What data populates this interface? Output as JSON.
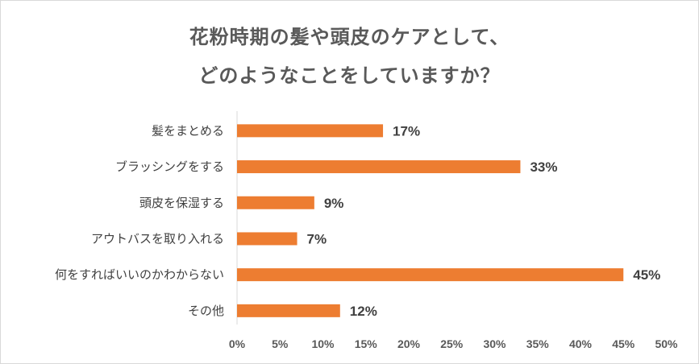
{
  "chart_data": {
    "type": "bar",
    "orientation": "horizontal",
    "title_lines": [
      "花粉時期の髪や頭皮のケアとして、",
      "どのようなことをしていますか？"
    ],
    "categories": [
      "髪をまとめる",
      "ブラッシングをする",
      "頭皮を保湿する",
      "アウトバスを取り入れる",
      "何をすればいいのかわからない",
      "その他"
    ],
    "values": [
      17,
      33,
      9,
      7,
      45,
      12
    ],
    "data_labels": [
      "17%",
      "33%",
      "9%",
      "7%",
      "45%",
      "12%"
    ],
    "xlim": [
      0,
      50
    ],
    "x_ticks": [
      0,
      5,
      10,
      15,
      20,
      25,
      30,
      35,
      40,
      45,
      50
    ],
    "x_tick_labels": [
      "0%",
      "5%",
      "10%",
      "15%",
      "20%",
      "25%",
      "30%",
      "35%",
      "40%",
      "45%",
      "50%"
    ],
    "bar_color": "#ED7D31",
    "grid": false,
    "legend": "none"
  }
}
